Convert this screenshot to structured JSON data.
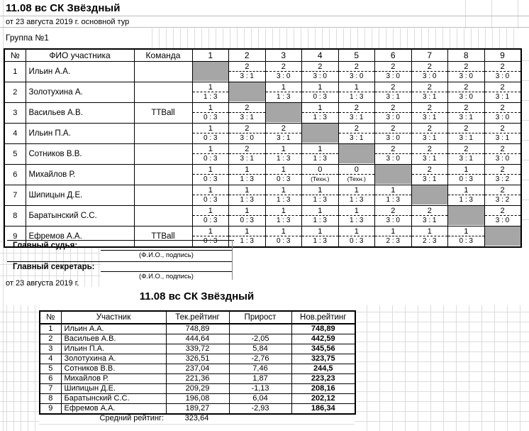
{
  "header": {
    "title": "11.08 вс СК Звёздный",
    "subtitle": "от 23 августа 2019 г. основной тур",
    "group_label": "Группа №1"
  },
  "results_table": {
    "columns": {
      "num": "№",
      "name": "ФИО участника",
      "team": "Команда"
    },
    "rounds": [
      "1",
      "2",
      "3",
      "4",
      "5",
      "6",
      "7",
      "8",
      "9"
    ],
    "players": [
      {
        "num": "1",
        "name": "Ильин А.А.",
        "team": "",
        "cells": [
          null,
          {
            "pts": "2",
            "score": "3 : 1"
          },
          {
            "pts": "2",
            "score": "3 : 0"
          },
          {
            "pts": "2",
            "score": "3 : 0"
          },
          {
            "pts": "2",
            "score": "3 : 0"
          },
          {
            "pts": "2",
            "score": "3 : 0"
          },
          {
            "pts": "2",
            "score": "3 : 0"
          },
          {
            "pts": "2",
            "score": "3 : 0"
          },
          {
            "pts": "2",
            "score": "3 : 0"
          }
        ]
      },
      {
        "num": "2",
        "name": "Золотухина А.",
        "team": "",
        "cells": [
          {
            "pts": "1",
            "score": "1 : 3"
          },
          null,
          {
            "pts": "1",
            "score": "1 : 3"
          },
          {
            "pts": "1",
            "score": "0 : 3"
          },
          {
            "pts": "1",
            "score": "1 : 3"
          },
          {
            "pts": "2",
            "score": "3 : 1"
          },
          {
            "pts": "2",
            "score": "3 : 1"
          },
          {
            "pts": "2",
            "score": "3 : 0"
          },
          {
            "pts": "2",
            "score": "3 : 1"
          }
        ]
      },
      {
        "num": "3",
        "name": "Васильев А.В.",
        "team": "TTBall",
        "cells": [
          {
            "pts": "1",
            "score": "0 : 3"
          },
          {
            "pts": "2",
            "score": "3 : 1"
          },
          null,
          {
            "pts": "1",
            "score": "1 : 3"
          },
          {
            "pts": "2",
            "score": "3 : 1"
          },
          {
            "pts": "2",
            "score": "3 : 0"
          },
          {
            "pts": "2",
            "score": "3 : 1"
          },
          {
            "pts": "2",
            "score": "3 : 1"
          },
          {
            "pts": "2",
            "score": "3 : 0"
          }
        ]
      },
      {
        "num": "4",
        "name": "Ильин П.А.",
        "team": "",
        "cells": [
          {
            "pts": "1",
            "score": "0 : 3"
          },
          {
            "pts": "2",
            "score": "3 : 0"
          },
          {
            "pts": "2",
            "score": "3 : 1"
          },
          null,
          {
            "pts": "2",
            "score": "3 : 1"
          },
          {
            "pts": "2",
            "score": "3 : 0"
          },
          {
            "pts": "2",
            "score": "3 : 1"
          },
          {
            "pts": "2",
            "score": "3 : 1"
          },
          {
            "pts": "2",
            "score": "3 : 1"
          }
        ]
      },
      {
        "num": "5",
        "name": "Сотников В.В.",
        "team": "",
        "cells": [
          {
            "pts": "1",
            "score": "0 : 3"
          },
          {
            "pts": "2",
            "score": "3 : 1"
          },
          {
            "pts": "1",
            "score": "1 : 3"
          },
          {
            "pts": "1",
            "score": "1 : 3"
          },
          null,
          {
            "pts": "2",
            "score": "3 : 0"
          },
          {
            "pts": "2",
            "score": "3 : 1"
          },
          {
            "pts": "2",
            "score": "3 : 1"
          },
          {
            "pts": "2",
            "score": "3 : 0"
          }
        ]
      },
      {
        "num": "6",
        "name": "Михайлов Р.",
        "team": "",
        "cells": [
          {
            "pts": "1",
            "score": "0 : 3"
          },
          {
            "pts": "1",
            "score": "1 : 3"
          },
          {
            "pts": "1",
            "score": "0 : 3"
          },
          {
            "pts": "0",
            "score": "(Техн.)",
            "tech": true
          },
          {
            "pts": "0",
            "score": "(Техн.)",
            "tech": true
          },
          null,
          {
            "pts": "2",
            "score": "3 : 1"
          },
          {
            "pts": "1",
            "score": "0 : 3"
          },
          {
            "pts": "2",
            "score": "3 : 2"
          }
        ]
      },
      {
        "num": "7",
        "name": "Шипицын Д.Е.",
        "team": "",
        "cells": [
          {
            "pts": "1",
            "score": "0 : 3"
          },
          {
            "pts": "1",
            "score": "1 : 3"
          },
          {
            "pts": "1",
            "score": "1 : 3"
          },
          {
            "pts": "1",
            "score": "1 : 3"
          },
          {
            "pts": "1",
            "score": "1 : 3"
          },
          {
            "pts": "1",
            "score": "1 : 3"
          },
          null,
          {
            "pts": "1",
            "score": "1 : 3"
          },
          {
            "pts": "2",
            "score": "3 : 2"
          }
        ]
      },
      {
        "num": "8",
        "name": "Баратынский С.С.",
        "team": "",
        "cells": [
          {
            "pts": "1",
            "score": "0 : 3"
          },
          {
            "pts": "1",
            "score": "0 : 3"
          },
          {
            "pts": "1",
            "score": "1 : 3"
          },
          {
            "pts": "1",
            "score": "1 : 3"
          },
          {
            "pts": "1",
            "score": "1 : 3"
          },
          {
            "pts": "2",
            "score": "3 : 0"
          },
          {
            "pts": "2",
            "score": "3 : 1"
          },
          null,
          {
            "pts": "2",
            "score": "3 : 0"
          }
        ]
      },
      {
        "num": "9",
        "name": "Ефремов А.А.",
        "team": "TTBall",
        "cells": [
          {
            "pts": "1",
            "score": "0 : 3"
          },
          {
            "pts": "1",
            "score": "1 : 3"
          },
          {
            "pts": "1",
            "score": "0 : 3"
          },
          {
            "pts": "1",
            "score": "1 : 3"
          },
          {
            "pts": "1",
            "score": "0 : 3"
          },
          {
            "pts": "1",
            "score": "2 : 3"
          },
          {
            "pts": "1",
            "score": "2 : 3"
          },
          {
            "pts": "1",
            "score": "0 : 3"
          },
          null
        ]
      }
    ]
  },
  "signature_block": {
    "judge_label": "Главный судья:",
    "secretary_label": "Главный секретарь:",
    "sign_hint": "(Ф.И.О., подпись)",
    "date_note": "от 23 августа 2019 г."
  },
  "rating_section": {
    "title": "11.08 вс СК Звёздный",
    "columns": [
      "№",
      "Участник",
      "Тек.рейтинг",
      "Прирост",
      "Нов.рейтинг"
    ],
    "rows": [
      {
        "num": "1",
        "name": "Ильин А.А.",
        "current": "748,89",
        "delta": "",
        "new": "748,89"
      },
      {
        "num": "2",
        "name": "Васильев А.В.",
        "current": "444,64",
        "delta": "-2,05",
        "new": "442,59"
      },
      {
        "num": "3",
        "name": "Ильин П.А.",
        "current": "339,72",
        "delta": "5,84",
        "new": "345,56"
      },
      {
        "num": "4",
        "name": "Золотухина А.",
        "current": "326,51",
        "delta": "-2,76",
        "new": "323,75"
      },
      {
        "num": "5",
        "name": "Сотников В.В.",
        "current": "237,04",
        "delta": "7,46",
        "new": "244,5"
      },
      {
        "num": "6",
        "name": "Михайлов Р.",
        "current": "221,36",
        "delta": "1,87",
        "new": "223,23"
      },
      {
        "num": "7",
        "name": "Шипицын Д.Е.",
        "current": "209,29",
        "delta": "-1,13",
        "new": "208,16"
      },
      {
        "num": "8",
        "name": "Баратынский С.С.",
        "current": "196,08",
        "delta": "6,04",
        "new": "202,12"
      },
      {
        "num": "9",
        "name": "Ефремов А.А.",
        "current": "189,27",
        "delta": "-2,93",
        "new": "186,34"
      }
    ],
    "avg_label": "Средний рейтинг:",
    "avg_value": "323,64"
  },
  "colors": {
    "diagonal_fill": "#a6a6a6",
    "gridline": "#dcdcdc"
  }
}
